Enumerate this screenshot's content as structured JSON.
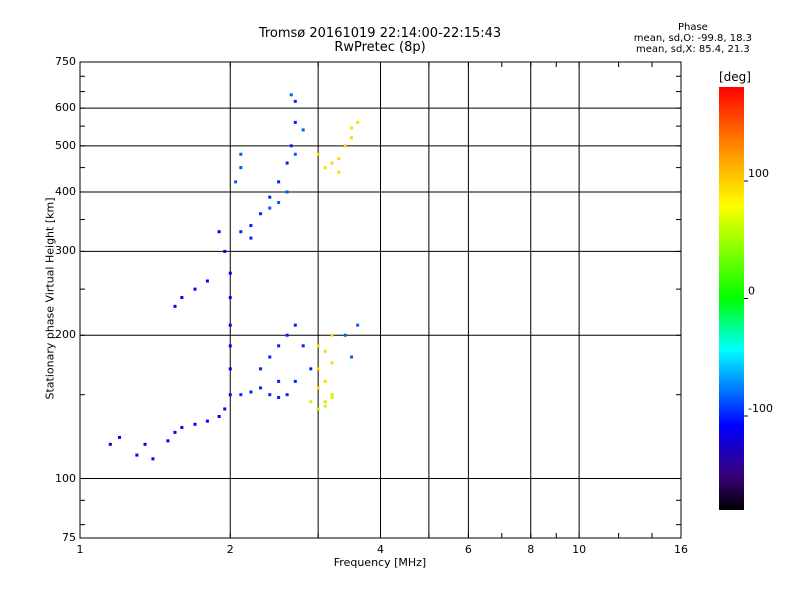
{
  "chart_data": {
    "type": "scatter",
    "title": "Tromsø 20161019 22:14:00-22:15:43",
    "subtitle": "RwPretec (8p)",
    "xlabel": "Frequency [MHz]",
    "ylabel": "Stationary phase Virtual Height [km]",
    "x_scale": "log",
    "y_scale": "log",
    "xlim": [
      1,
      16
    ],
    "ylim": [
      75,
      750
    ],
    "x_ticks": [
      1,
      2,
      4,
      6,
      8,
      10,
      16
    ],
    "y_ticks": [
      75,
      100,
      200,
      300,
      400,
      500,
      600,
      750
    ],
    "x_gridlines": [
      2,
      3,
      4,
      5,
      6,
      8,
      10
    ],
    "y_gridlines": [
      100,
      200,
      300,
      400,
      500,
      600
    ],
    "grid": true,
    "phase_stats": {
      "heading": "Phase",
      "line_o": "mean, sd,O: -99.8, 18.3",
      "line_x": "mean, sd,X:  85.4, 21.3"
    },
    "colorbar": {
      "label": "[deg]",
      "range": [
        -180,
        180
      ],
      "ticks": [
        100,
        0,
        -100
      ]
    },
    "series": [
      {
        "phase_deg": -110,
        "points": [
          [
            1.15,
            118
          ],
          [
            1.2,
            122
          ],
          [
            1.3,
            112
          ],
          [
            1.35,
            118
          ],
          [
            1.4,
            110
          ],
          [
            1.5,
            120
          ],
          [
            1.55,
            125
          ],
          [
            1.6,
            128
          ],
          [
            1.7,
            130
          ],
          [
            1.8,
            132
          ],
          [
            1.9,
            135
          ],
          [
            1.95,
            140
          ],
          [
            2.0,
            150
          ],
          [
            2.0,
            170
          ],
          [
            2.0,
            190
          ],
          [
            2.0,
            210
          ],
          [
            2.0,
            240
          ],
          [
            2.0,
            270
          ],
          [
            1.95,
            300
          ],
          [
            1.9,
            330
          ],
          [
            1.6,
            240
          ],
          [
            1.55,
            230
          ],
          [
            1.7,
            250
          ],
          [
            1.8,
            260
          ]
        ]
      },
      {
        "phase_deg": -100,
        "points": [
          [
            2.1,
            150
          ],
          [
            2.2,
            152
          ],
          [
            2.3,
            155
          ],
          [
            2.4,
            150
          ],
          [
            2.5,
            148
          ],
          [
            2.6,
            150
          ],
          [
            2.7,
            160
          ],
          [
            2.3,
            170
          ],
          [
            2.4,
            180
          ],
          [
            2.5,
            190
          ],
          [
            2.6,
            200
          ],
          [
            2.7,
            210
          ],
          [
            2.8,
            190
          ],
          [
            2.9,
            170
          ],
          [
            2.5,
            160
          ],
          [
            2.2,
            340
          ],
          [
            2.3,
            360
          ],
          [
            2.4,
            390
          ],
          [
            2.5,
            420
          ],
          [
            2.6,
            460
          ],
          [
            2.65,
            500
          ],
          [
            2.7,
            560
          ],
          [
            2.7,
            620
          ],
          [
            2.1,
            330
          ],
          [
            2.2,
            320
          ]
        ]
      },
      {
        "phase_deg": -85,
        "points": [
          [
            2.05,
            420
          ],
          [
            2.1,
            450
          ],
          [
            2.1,
            480
          ],
          [
            2.4,
            370
          ],
          [
            2.5,
            380
          ],
          [
            2.6,
            400
          ],
          [
            2.7,
            480
          ],
          [
            2.8,
            540
          ],
          [
            2.65,
            640
          ],
          [
            3.6,
            210
          ],
          [
            3.5,
            180
          ],
          [
            3.4,
            200
          ]
        ]
      },
      {
        "phase_deg": 95,
        "points": [
          [
            3.0,
            170
          ],
          [
            3.1,
            160
          ],
          [
            3.2,
            150
          ],
          [
            3.1,
            145
          ],
          [
            3.0,
            155
          ],
          [
            3.2,
            175
          ],
          [
            3.1,
            185
          ],
          [
            3.0,
            190
          ],
          [
            3.2,
            200
          ],
          [
            3.1,
            450
          ],
          [
            3.2,
            460
          ],
          [
            3.3,
            470
          ],
          [
            3.0,
            480
          ],
          [
            3.4,
            500
          ],
          [
            3.5,
            520
          ],
          [
            3.5,
            545
          ],
          [
            3.6,
            560
          ],
          [
            3.3,
            440
          ]
        ]
      },
      {
        "phase_deg": 60,
        "points": [
          [
            3.0,
            140
          ],
          [
            3.1,
            142
          ],
          [
            3.2,
            148
          ],
          [
            2.9,
            145
          ]
        ]
      }
    ]
  }
}
